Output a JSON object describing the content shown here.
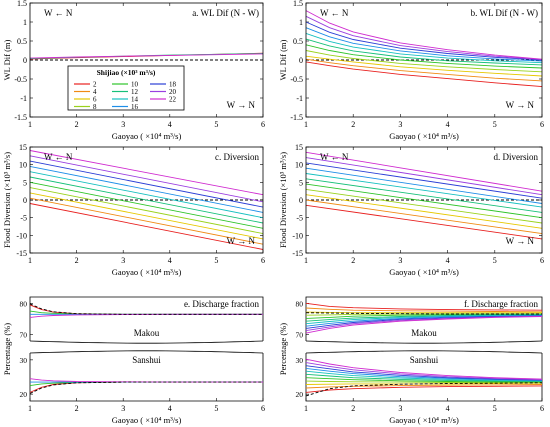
{
  "colors": [
    "#e8201f",
    "#f08a14",
    "#e6c800",
    "#9ad21d",
    "#2fc42a",
    "#17c07a",
    "#16c0c0",
    "#1e8ee8",
    "#2c3fd6",
    "#9a3fe0",
    "#d02cd0"
  ],
  "legend": {
    "title": "Shijiao (×10³ m³/s)",
    "entries": [
      "2",
      "4",
      "6",
      "8",
      "10",
      "12",
      "14",
      "16",
      "18",
      "20",
      "22"
    ]
  },
  "chart_data": [
    {
      "type": "line",
      "panel_label": "a. WL Dif (N - W)",
      "ylabel": "WL Dif (m)",
      "xlabel": "Gaoyao ( ×10⁴ m³/s)",
      "xlim": [
        1,
        6
      ],
      "ylim": [
        -1.5,
        1.5
      ],
      "xticks": [
        "1",
        "2",
        "3",
        "4",
        "5",
        "6"
      ],
      "yticks": [
        "-1.5",
        "-1",
        "-0.5",
        "0",
        "0.5",
        "1",
        "1.5"
      ],
      "annotations": [
        "W ← N",
        "W → N"
      ],
      "reference_line": 0,
      "x": [
        1,
        2,
        3,
        4,
        5,
        6
      ],
      "series": [
        {
          "values": [
            0.03,
            0.06,
            0.09,
            0.12,
            0.15,
            0.18
          ]
        },
        {
          "values": [
            0.04,
            0.07,
            0.1,
            0.13,
            0.15,
            0.17
          ]
        },
        {
          "values": [
            0.05,
            0.08,
            0.1,
            0.12,
            0.14,
            0.16
          ]
        }
      ]
    },
    {
      "type": "line",
      "panel_label": "b. WL Dif (N - W)",
      "ylabel": "WL Dif (m)",
      "xlabel": "Gaoyao ( ×10⁴ m³/s)",
      "xlim": [
        1,
        6
      ],
      "ylim": [
        -1.5,
        1.5
      ],
      "xticks": [
        "1",
        "2",
        "3",
        "4",
        "5",
        "6"
      ],
      "yticks": [
        "-1.5",
        "-1",
        "-0.5",
        "0",
        "0.5",
        "1",
        "1.5"
      ],
      "annotations": [
        "W ← N",
        "W → N"
      ],
      "reference_line": 0,
      "x": [
        1,
        1.5,
        2,
        3,
        4,
        5,
        6
      ],
      "series": [
        {
          "name": "2",
          "values": [
            -0.05,
            -0.15,
            -0.24,
            -0.38,
            -0.49,
            -0.6,
            -0.7
          ]
        },
        {
          "name": "4",
          "values": [
            0.02,
            -0.07,
            -0.15,
            -0.28,
            -0.38,
            -0.48,
            -0.55
          ]
        },
        {
          "name": "6",
          "values": [
            0.1,
            0.02,
            -0.05,
            -0.18,
            -0.27,
            -0.35,
            -0.42
          ]
        },
        {
          "name": "8",
          "values": [
            0.25,
            0.13,
            0.04,
            -0.09,
            -0.18,
            -0.25,
            -0.31
          ]
        },
        {
          "name": "10",
          "values": [
            0.4,
            0.25,
            0.14,
            0.0,
            -0.09,
            -0.16,
            -0.21
          ]
        },
        {
          "name": "12",
          "values": [
            0.55,
            0.37,
            0.24,
            0.08,
            -0.02,
            -0.08,
            -0.13
          ]
        },
        {
          "name": "14",
          "values": [
            0.7,
            0.49,
            0.34,
            0.16,
            0.05,
            -0.02,
            -0.07
          ]
        },
        {
          "name": "16",
          "values": [
            0.85,
            0.61,
            0.44,
            0.24,
            0.11,
            0.03,
            -0.03
          ]
        },
        {
          "name": "18",
          "values": [
            1.0,
            0.73,
            0.54,
            0.31,
            0.17,
            0.07,
            0.0
          ]
        },
        {
          "name": "20",
          "values": [
            1.15,
            0.85,
            0.64,
            0.38,
            0.22,
            0.1,
            0.01
          ]
        },
        {
          "name": "22",
          "values": [
            1.3,
            0.97,
            0.74,
            0.45,
            0.27,
            0.13,
            0.02
          ]
        }
      ]
    },
    {
      "type": "line",
      "panel_label": "c. Diversion",
      "ylabel": "Flood Diversion (×10³ m³/s)",
      "xlabel": "Gaoyao ( ×10⁴ m³/s)",
      "xlim": [
        1,
        6
      ],
      "ylim": [
        -15,
        15
      ],
      "xticks": [
        "1",
        "2",
        "3",
        "4",
        "5",
        "6"
      ],
      "yticks": [
        "-15",
        "-10",
        "-5",
        "0",
        "5",
        "10",
        "15"
      ],
      "annotations": [
        "W ← N",
        "W → N"
      ],
      "reference_line": 0,
      "x": [
        1,
        6
      ],
      "series": [
        {
          "name": "2",
          "values": [
            -1,
            -14
          ]
        },
        {
          "name": "4",
          "values": [
            0.5,
            -12.5
          ]
        },
        {
          "name": "6",
          "values": [
            2,
            -11
          ]
        },
        {
          "name": "8",
          "values": [
            3.5,
            -9.5
          ]
        },
        {
          "name": "10",
          "values": [
            5,
            -8
          ]
        },
        {
          "name": "12",
          "values": [
            6.5,
            -6.5
          ]
        },
        {
          "name": "14",
          "values": [
            8,
            -5
          ]
        },
        {
          "name": "16",
          "values": [
            9.5,
            -3.5
          ]
        },
        {
          "name": "18",
          "values": [
            11,
            -2
          ]
        },
        {
          "name": "20",
          "values": [
            12.5,
            -0.5
          ]
        },
        {
          "name": "22",
          "values": [
            14,
            1.5
          ]
        }
      ]
    },
    {
      "type": "line",
      "panel_label": "d. Diversion",
      "ylabel": "Flood Diversion (×10³ m³/s)",
      "xlabel": "Gaoyao ( ×10⁴ m³/s)",
      "xlim": [
        1,
        6
      ],
      "ylim": [
        -15,
        15
      ],
      "xticks": [
        "1",
        "2",
        "3",
        "4",
        "5",
        "6"
      ],
      "yticks": [
        "-15",
        "-10",
        "-5",
        "0",
        "5",
        "10",
        "15"
      ],
      "annotations": [
        "W ← N",
        "W → N"
      ],
      "reference_line": 0,
      "x": [
        1,
        6
      ],
      "series": [
        {
          "name": "2",
          "values": [
            -1.5,
            -11
          ]
        },
        {
          "name": "4",
          "values": [
            0,
            -9.5
          ]
        },
        {
          "name": "6",
          "values": [
            1.5,
            -8
          ]
        },
        {
          "name": "8",
          "values": [
            3,
            -6.5
          ]
        },
        {
          "name": "10",
          "values": [
            4.5,
            -5
          ]
        },
        {
          "name": "12",
          "values": [
            6,
            -3.5
          ]
        },
        {
          "name": "14",
          "values": [
            7.5,
            -2
          ]
        },
        {
          "name": "16",
          "values": [
            9,
            -1
          ]
        },
        {
          "name": "18",
          "values": [
            10.5,
            0.5
          ]
        },
        {
          "name": "20",
          "values": [
            12,
            1.5
          ]
        },
        {
          "name": "22",
          "values": [
            13.5,
            2.5
          ]
        }
      ]
    },
    {
      "type": "line",
      "panel_label": "e. Discharge fraction",
      "ylabel": "Percentage (%)",
      "xlabel": "Gaoyao ( ×10⁴ m³/s)",
      "xlim": [
        1,
        6
      ],
      "ylim_upper": [
        68,
        82
      ],
      "ylim_lower": [
        18,
        32
      ],
      "xticks": [
        "1",
        "2",
        "3",
        "4",
        "5",
        "6"
      ],
      "yticks_upper": [
        "70",
        "80"
      ],
      "yticks_lower": [
        "20",
        "30"
      ],
      "group_labels": [
        "Makou",
        "Sanshui"
      ],
      "x": [
        1,
        1.25,
        1.5,
        2,
        3,
        4,
        5,
        6
      ],
      "series_upper": [
        {
          "values": [
            79.5,
            78,
            77.2,
            76.7,
            76.5,
            76.5,
            76.5,
            76.5
          ]
        },
        {
          "values": [
            77.5,
            77,
            76.8,
            76.6,
            76.5,
            76.5,
            76.5,
            76.5
          ]
        },
        {
          "values": [
            76.5,
            76.5,
            76.5,
            76.5,
            76.5,
            76.5,
            76.5,
            76.5
          ]
        },
        {
          "values": [
            75.5,
            75.9,
            76.1,
            76.3,
            76.4,
            76.5,
            76.5,
            76.5
          ]
        }
      ],
      "reference_upper": [
        79.8,
        78.2,
        77.3,
        76.7,
        76.5,
        76.5,
        76.5,
        76.5
      ],
      "series_lower": [
        {
          "values": [
            20.5,
            22,
            22.8,
            23.3,
            23.5,
            23.5,
            23.5,
            23.5
          ]
        },
        {
          "values": [
            22.5,
            23,
            23.2,
            23.4,
            23.5,
            23.5,
            23.5,
            23.5
          ]
        },
        {
          "values": [
            23.5,
            23.5,
            23.5,
            23.5,
            23.5,
            23.5,
            23.5,
            23.5
          ]
        },
        {
          "values": [
            24.5,
            24.1,
            23.9,
            23.7,
            23.6,
            23.5,
            23.5,
            23.5
          ]
        }
      ],
      "reference_lower": [
        20.2,
        21.8,
        22.7,
        23.3,
        23.5,
        23.5,
        23.5,
        23.5
      ]
    },
    {
      "type": "line",
      "panel_label": "f. Discharge fraction",
      "ylabel": "Percentage (%)",
      "xlabel": "Gaoyao ( ×10⁴ m³/s)",
      "xlim": [
        1,
        6
      ],
      "ylim_upper": [
        68,
        82
      ],
      "ylim_lower": [
        18,
        32
      ],
      "xticks": [
        "1",
        "2",
        "3",
        "4",
        "5",
        "6"
      ],
      "yticks_upper": [
        "70",
        "80"
      ],
      "yticks_lower": [
        "20",
        "30"
      ],
      "group_labels": [
        "Makou",
        "Sanshui"
      ],
      "x": [
        1,
        1.5,
        2,
        3,
        4,
        5,
        6
      ],
      "series_upper": [
        {
          "name": "2",
          "values": [
            80,
            79,
            78.6,
            78.2,
            78,
            77.9,
            77.8
          ]
        },
        {
          "name": "4",
          "values": [
            78.5,
            78.1,
            77.8,
            77.6,
            77.5,
            77.4,
            77.3
          ]
        },
        {
          "name": "6",
          "values": [
            77.2,
            77.1,
            77,
            77,
            77,
            77,
            77
          ]
        },
        {
          "name": "8",
          "values": [
            76.2,
            76.3,
            76.5,
            76.6,
            76.7,
            76.7,
            76.7
          ]
        },
        {
          "name": "10",
          "values": [
            75.2,
            75.5,
            75.9,
            76.2,
            76.4,
            76.5,
            76.5
          ]
        },
        {
          "name": "12",
          "values": [
            74.3,
            74.8,
            75.3,
            75.8,
            76.1,
            76.3,
            76.4
          ]
        },
        {
          "name": "14",
          "values": [
            73.5,
            74.2,
            74.8,
            75.5,
            75.9,
            76.1,
            76.2
          ]
        },
        {
          "name": "16",
          "values": [
            72.7,
            73.6,
            74.3,
            75.2,
            75.7,
            75.9,
            76.1
          ]
        },
        {
          "name": "18",
          "values": [
            72,
            73,
            73.9,
            74.9,
            75.4,
            75.8,
            76
          ]
        },
        {
          "name": "20",
          "values": [
            71.3,
            72.5,
            73.5,
            74.6,
            75.2,
            75.6,
            75.9
          ]
        },
        {
          "name": "22",
          "values": [
            70.5,
            72,
            73.1,
            74.3,
            75,
            75.5,
            75.8
          ]
        }
      ],
      "reference_upper": [
        77,
        76.9,
        76.8,
        76.7,
        76.6,
        76.6,
        76.6
      ],
      "series_lower": [
        {
          "name": "2",
          "values": [
            20.5,
            21.2,
            21.6,
            22,
            22.2,
            22.3,
            22.4
          ]
        },
        {
          "name": "4",
          "values": [
            21.8,
            22.1,
            22.3,
            22.5,
            22.6,
            22.7,
            22.8
          ]
        },
        {
          "name": "6",
          "values": [
            22.8,
            22.9,
            23,
            23,
            23,
            23.1,
            23.2
          ]
        },
        {
          "name": "8",
          "values": [
            23.8,
            23.7,
            23.6,
            23.5,
            23.4,
            23.4,
            23.4
          ]
        },
        {
          "name": "10",
          "values": [
            24.8,
            24.5,
            24.2,
            23.9,
            23.7,
            23.6,
            23.6
          ]
        },
        {
          "name": "12",
          "values": [
            25.8,
            25.3,
            24.8,
            24.3,
            24,
            23.8,
            23.7
          ]
        },
        {
          "name": "14",
          "values": [
            26.7,
            26,
            25.4,
            24.7,
            24.3,
            24,
            23.9
          ]
        },
        {
          "name": "16",
          "values": [
            27.5,
            26.7,
            26,
            25.1,
            24.6,
            24.2,
            24
          ]
        },
        {
          "name": "18",
          "values": [
            28.3,
            27.4,
            26.5,
            25.5,
            24.8,
            24.4,
            24.1
          ]
        },
        {
          "name": "20",
          "values": [
            29.2,
            28.1,
            27.1,
            25.9,
            25.1,
            24.6,
            24.2
          ]
        },
        {
          "name": "22",
          "values": [
            30.2,
            28.8,
            27.7,
            26.3,
            25.4,
            24.8,
            24.4
          ]
        }
      ],
      "reference_lower": [
        19.5,
        21.6,
        22.4,
        22.9,
        23.1,
        23.2,
        23.3
      ]
    }
  ]
}
